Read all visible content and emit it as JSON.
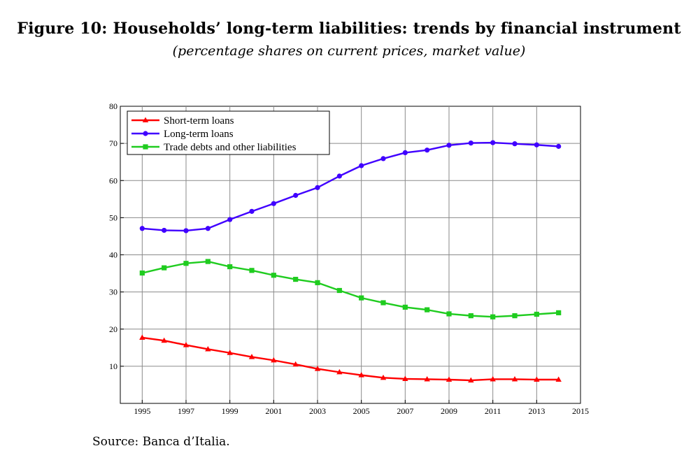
{
  "title": "Figure 10: Households’ long-term liabilities: trends by financial instrument",
  "subtitle": "(percentage shares on current prices, market value)",
  "source": "Source: Banca d’Italia.",
  "chart_data": {
    "type": "line",
    "xlim": [
      1994,
      2015
    ],
    "ylim": [
      0,
      80
    ],
    "x_ticks": [
      1995,
      1997,
      1999,
      2001,
      2003,
      2005,
      2007,
      2009,
      2011,
      2013,
      2015
    ],
    "y_ticks": [
      10,
      20,
      30,
      40,
      50,
      60,
      70,
      80
    ],
    "grid": true,
    "legend_position": "top-left",
    "x": [
      1995,
      1996,
      1997,
      1998,
      1999,
      2000,
      2001,
      2002,
      2003,
      2004,
      2005,
      2006,
      2007,
      2008,
      2009,
      2010,
      2011,
      2012,
      2013,
      2014
    ],
    "series": [
      {
        "name": "Short-term loans",
        "color": "#ff0000",
        "marker": "triangle",
        "values": [
          17.7,
          16.9,
          15.7,
          14.6,
          13.6,
          12.5,
          11.6,
          10.5,
          9.3,
          8.4,
          7.6,
          6.9,
          6.6,
          6.5,
          6.4,
          6.2,
          6.5,
          6.5,
          6.4,
          6.4
        ]
      },
      {
        "name": "Long-term loans",
        "color": "#4000ff",
        "marker": "circle",
        "values": [
          47.1,
          46.6,
          46.5,
          47.1,
          49.5,
          51.7,
          53.8,
          56.0,
          58.1,
          61.2,
          64.0,
          65.9,
          67.5,
          68.2,
          69.5,
          70.1,
          70.2,
          69.9,
          69.6,
          69.2
        ]
      },
      {
        "name": "Trade debts and other liabilities",
        "color": "#1fcc1f",
        "marker": "square",
        "values": [
          35.1,
          36.5,
          37.7,
          38.2,
          36.8,
          35.8,
          34.5,
          33.4,
          32.5,
          30.4,
          28.4,
          27.1,
          25.9,
          25.2,
          24.1,
          23.6,
          23.3,
          23.6,
          24.0,
          24.4
        ]
      }
    ]
  }
}
